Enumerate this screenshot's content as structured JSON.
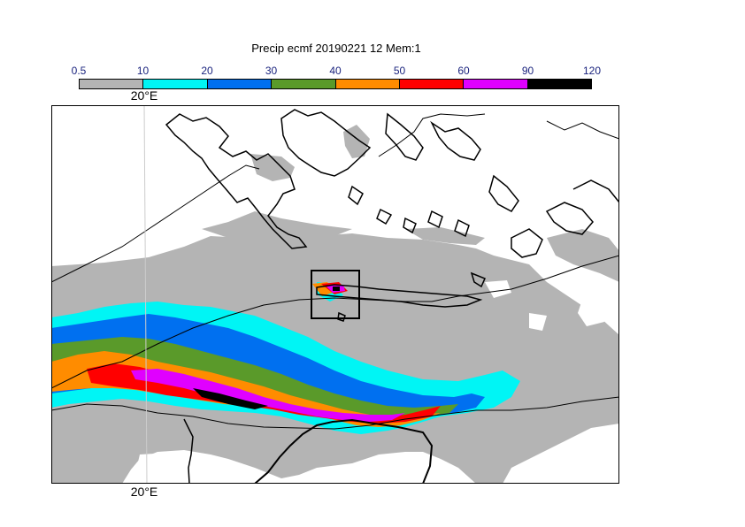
{
  "title": "Precip ecmf 20190221 12 Mem:1",
  "legend": {
    "bounds": [
      "0.5",
      "10",
      "20",
      "30",
      "40",
      "50",
      "60",
      "90",
      "120"
    ],
    "colors": [
      "#b4b4b4",
      "#00f5f5",
      "#0070f0",
      "#5a9a2a",
      "#ff8c00",
      "#ff0000",
      "#e000ff",
      "#000000"
    ]
  },
  "map": {
    "lon_label_top": "20°E",
    "lon_label_bottom": "20°E",
    "region": "Eastern Mediterranean (Greece, Aegean, Crete, Libya coast)",
    "grid_colors": {
      "background": "#ffffff",
      "coast": "#000000"
    },
    "highlight_box": "rectangle around western Crete"
  }
}
